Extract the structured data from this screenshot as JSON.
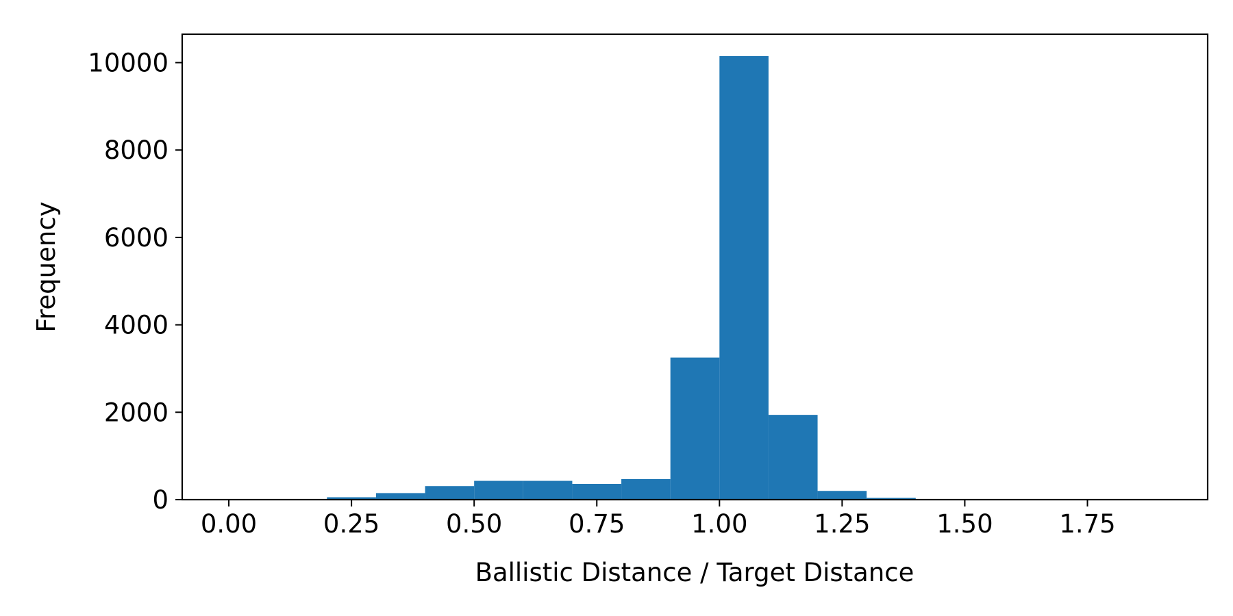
{
  "chart_data": {
    "type": "bar",
    "subtype": "histogram",
    "title": "",
    "xlabel": "Ballistic Distance / Target Distance",
    "ylabel": "Frequency",
    "xlim": [
      -0.095,
      1.995
    ],
    "ylim": [
      0,
      10650
    ],
    "x_ticks": [
      "0.00",
      "0.25",
      "0.50",
      "0.75",
      "1.00",
      "1.25",
      "1.50",
      "1.75"
    ],
    "y_ticks": [
      "0",
      "2000",
      "4000",
      "6000",
      "8000",
      "10000"
    ],
    "bin_edges": [
      0.0,
      0.1,
      0.2,
      0.3,
      0.4,
      0.5,
      0.6,
      0.7,
      0.8,
      0.9,
      1.0,
      1.1,
      1.2,
      1.3,
      1.4,
      1.5,
      1.6,
      1.7,
      1.8,
      1.9
    ],
    "values": [
      0,
      5,
      55,
      150,
      310,
      430,
      430,
      360,
      470,
      3250,
      10150,
      1940,
      200,
      40,
      10,
      5,
      2,
      1,
      0
    ],
    "bar_color": "#1f77b4",
    "grid": false,
    "legend": "none"
  }
}
